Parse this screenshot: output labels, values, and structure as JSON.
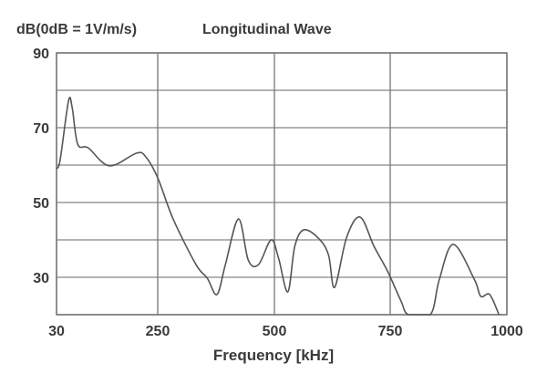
{
  "chart_data": {
    "type": "line",
    "ylabel": "dB(0dB = 1V/m/s)",
    "title": "Longitudinal Wave",
    "xlabel": "Frequency [kHz]",
    "xlim": [
      30,
      1000
    ],
    "ylim": [
      20,
      90
    ],
    "x_ticks": [
      30,
      250,
      500,
      750,
      1000
    ],
    "y_ticks": [
      90,
      70,
      50,
      30
    ],
    "y_grid": [
      20,
      30,
      40,
      50,
      60,
      70,
      80,
      90
    ],
    "grid": true,
    "series": [
      {
        "name": "Longitudinal Wave",
        "x": [
          30,
          38,
          56,
          64,
          76,
          99,
          145,
          204,
          224,
          250,
          283,
          332,
          356,
          377,
          395,
          423,
          444,
          466,
          493,
          509,
          529,
          544,
          564,
          597,
          617,
          630,
          656,
          685,
          715,
          744,
          773,
          789,
          836,
          855,
          885,
          930,
          944,
          963,
          983
        ],
        "y": [
          59.0,
          61.5,
          77.1,
          75.4,
          65.6,
          64.6,
          59.8,
          63.2,
          62.2,
          56.6,
          45.6,
          33.4,
          29.8,
          25.4,
          33.4,
          45.6,
          34.6,
          33.4,
          40.0,
          35.1,
          26.1,
          38.3,
          42.7,
          40.2,
          35.9,
          27.3,
          40.7,
          46.1,
          38.3,
          31.7,
          23.7,
          20.0,
          20.0,
          29.3,
          38.8,
          29.5,
          24.9,
          25.4,
          20.0
        ]
      }
    ]
  },
  "colors": {
    "grid": "#9a9a9a",
    "line": "#555555",
    "text": "#3a3a3a"
  }
}
